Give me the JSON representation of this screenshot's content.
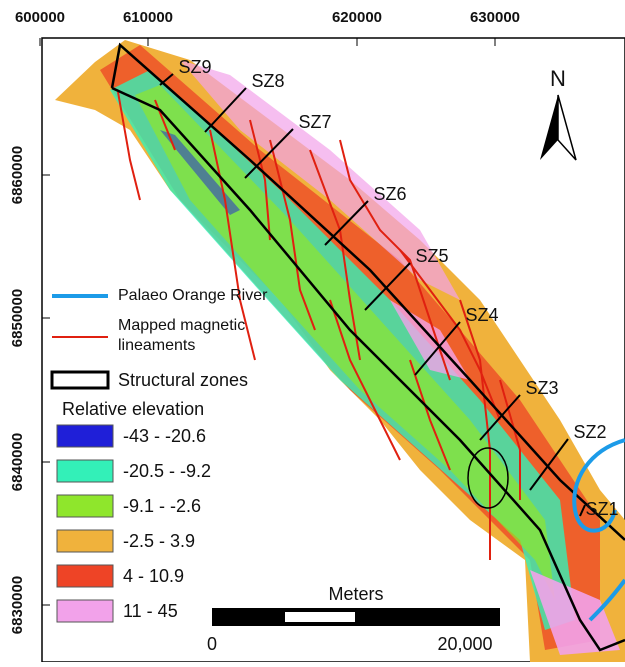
{
  "axes": {
    "x_labels": [
      "600000",
      "610000",
      "620000",
      "630000"
    ],
    "y_labels": [
      "6860000",
      "6850000",
      "6840000",
      "6830000"
    ]
  },
  "zones": [
    "SZ1",
    "SZ2",
    "SZ3",
    "SZ4",
    "SZ5",
    "SZ6",
    "SZ7",
    "SZ8",
    "SZ9"
  ],
  "north": "N",
  "legend": {
    "river": "Palaeo Orange River",
    "lineaments": [
      "Mapped magnetic",
      "lineaments"
    ],
    "structural": "Structural zones",
    "elevation_title": "Relative elevation",
    "classes": [
      {
        "label": "-43 - -20.6",
        "color": "#1f1fd8"
      },
      {
        "label": "-20.5 - -9.2",
        "color": "#33f0b8"
      },
      {
        "label": "-9.1 - -2.6",
        "color": "#8fe62c"
      },
      {
        "label": "-2.5 - 3.9",
        "color": "#f0b23c"
      },
      {
        "label": "4 - 10.9",
        "color": "#ee4426"
      },
      {
        "label": "11 - 45",
        "color": "#f2a2ea"
      }
    ]
  },
  "scale": {
    "title": "Meters",
    "labels": [
      "0",
      "20,000"
    ]
  }
}
